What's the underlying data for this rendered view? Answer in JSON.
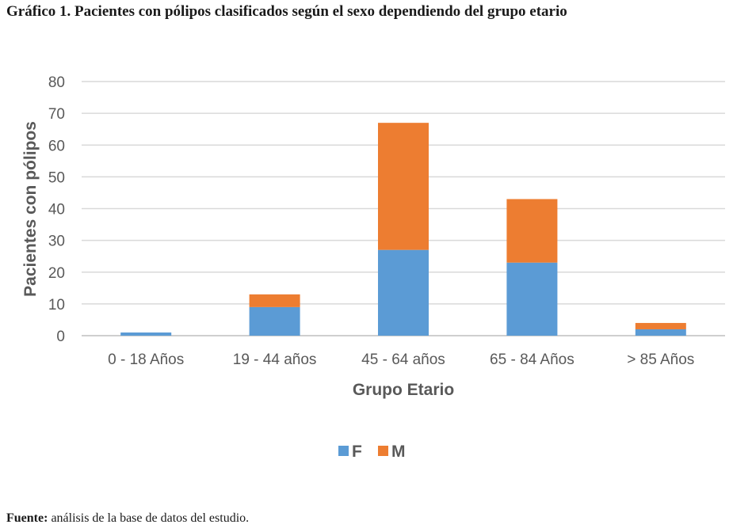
{
  "caption": "Gráfico 1. Pacientes con pólipos clasificados según el sexo dependiendo del grupo etario",
  "source": {
    "label": "Fuente:",
    "text": " análisis de la base de datos del estudio."
  },
  "chart_data": {
    "type": "bar",
    "stacked": true,
    "categories": [
      "0 - 18 Años",
      "19 - 44 años",
      "45 - 64 años",
      "65 - 84 Años",
      "> 85 Años"
    ],
    "series": [
      {
        "name": "F",
        "values": [
          1,
          9,
          27,
          23,
          2
        ],
        "color": "#5b9bd5"
      },
      {
        "name": "M",
        "values": [
          0,
          4,
          40,
          20,
          2
        ],
        "color": "#ed7d31"
      }
    ],
    "xlabel": "Grupo Etario",
    "ylabel": "Pacientes con pólipos",
    "ylim": [
      0,
      80
    ],
    "yticks": [
      0,
      10,
      20,
      30,
      40,
      50,
      60,
      70,
      80
    ],
    "grid": true,
    "legend": "bottom"
  }
}
